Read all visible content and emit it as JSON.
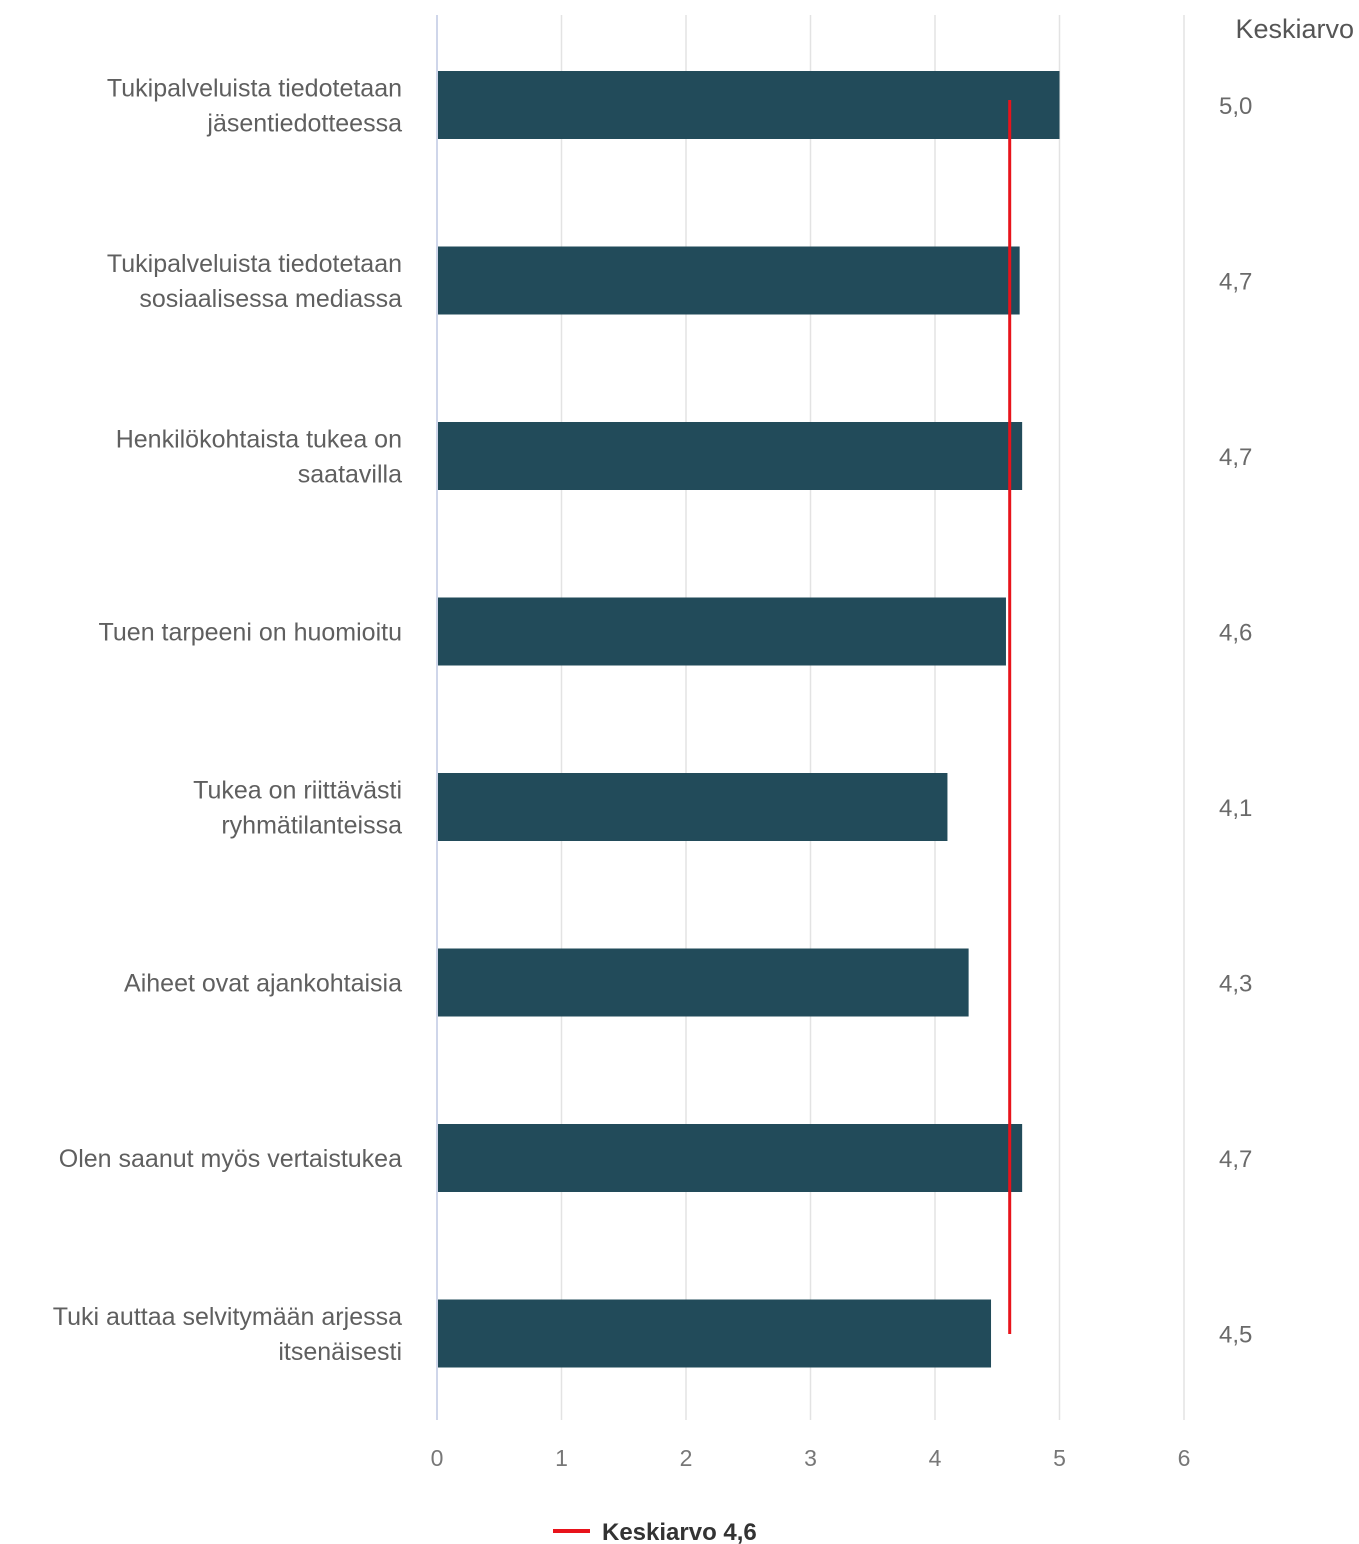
{
  "chart_data": {
    "type": "bar",
    "orientation": "horizontal",
    "categories": [
      [
        "Tukipalveluista tiedotetaan",
        "jäsentiedotteessa"
      ],
      [
        "Tukipalveluista tiedotetaan",
        "sosiaalisessa mediassa"
      ],
      [
        "Henkilökohtaista tukea on",
        "saatavilla"
      ],
      [
        "Tuen tarpeeni on huomioitu"
      ],
      [
        "Tukea on riittävästi",
        "ryhmätilanteissa"
      ],
      [
        "Aiheet ovat ajankohtaisia"
      ],
      [
        "Olen saanut myös vertaistukea"
      ],
      [
        "Tuki auttaa selvitymään arjessa",
        "itsenäisesti"
      ]
    ],
    "values": [
      5.0,
      4.68,
      4.7,
      4.57,
      4.1,
      4.27,
      4.7,
      4.45
    ],
    "value_labels": [
      "5,0",
      "4,7",
      "4,7",
      "4,6",
      "4,1",
      "4,3",
      "4,7",
      "4,5"
    ],
    "value_column_header": "Keskiarvo",
    "average_line": {
      "value": 4.6,
      "legend_label": "Keskiarvo 4,6"
    },
    "xlim": [
      0,
      6
    ],
    "xticks": [
      "0",
      "1",
      "2",
      "3",
      "4",
      "5",
      "6"
    ],
    "grid": true,
    "legend_position": "bottom",
    "colors": {
      "bar": "#224b5a",
      "average_line": "#e8131b",
      "grid": "#e3e3e3",
      "axis": "#cfd6ea"
    }
  }
}
